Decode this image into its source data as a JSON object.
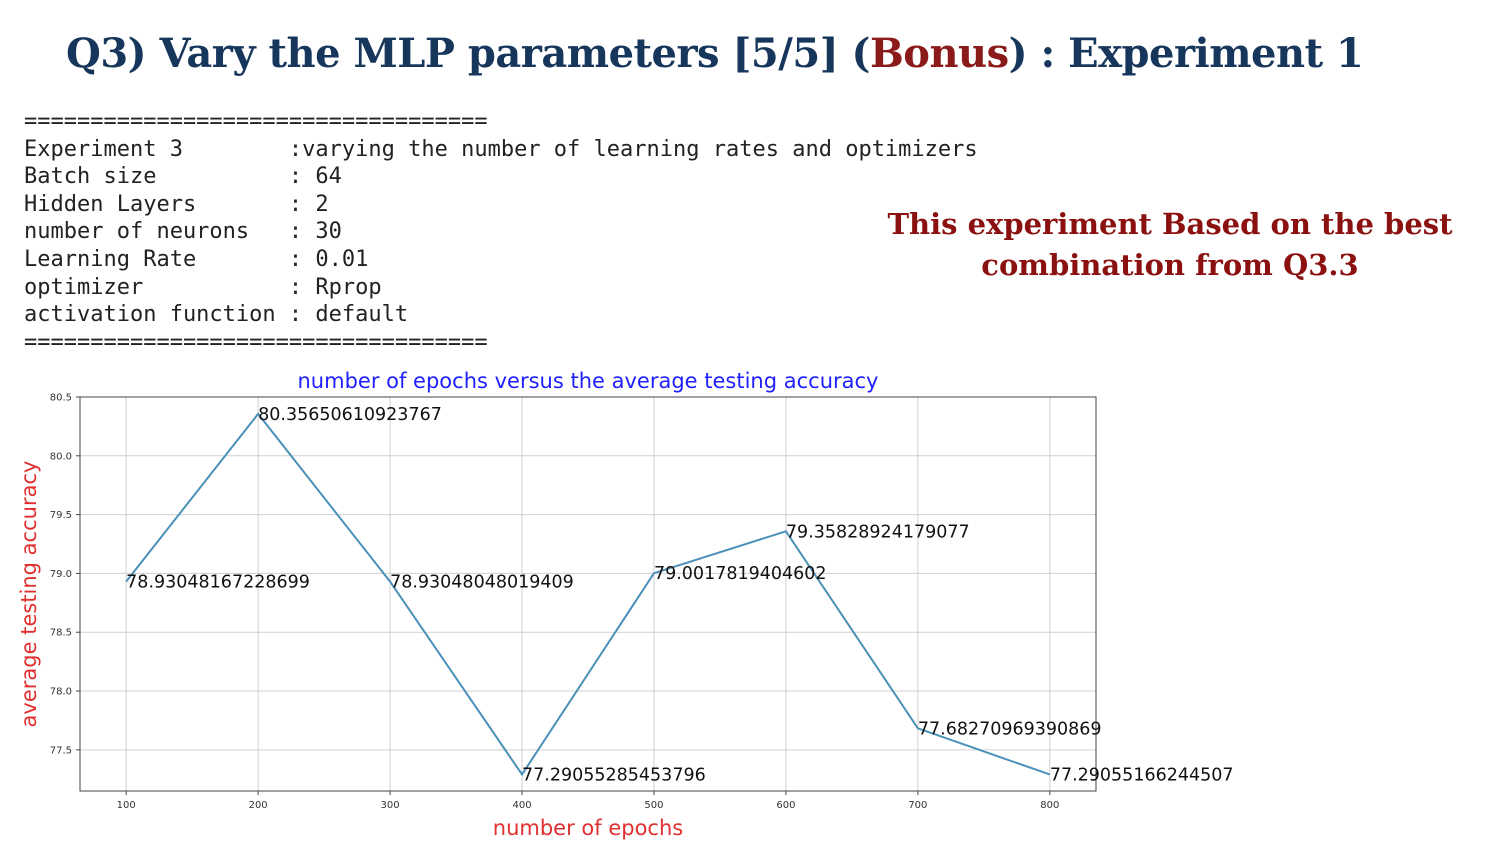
{
  "slide": {
    "title_prefix": "Q3) Vary the MLP parameters [5/5]  (",
    "title_bonus": "Bonus",
    "title_suffix": ") : Experiment 1",
    "note": "This experiment Based on the best combination from Q3.3"
  },
  "console": {
    "rule": "===================================",
    "lines": [
      "Experiment 3        :varying the number of learning rates and optimizers",
      "Batch size          : 64",
      "Hidden Layers       : 2",
      "number of neurons   : 30",
      "Learning Rate       : 0.01",
      "optimizer           : Rprop",
      "activation function : default"
    ]
  },
  "colors": {
    "title": "#16365c",
    "bonus": "#8b1a1a",
    "note": "#8b1010",
    "chart_title": "#1f1fff",
    "axis_labels": "#e03030",
    "series_line": "#4a90b8"
  },
  "chart_data": {
    "type": "line",
    "title": "number of epochs versus the average testing accuracy",
    "xlabel": "number of epochs",
    "ylabel": "average testing accuracy",
    "x": [
      100,
      200,
      300,
      400,
      500,
      600,
      700,
      800
    ],
    "xticks": [
      "100",
      "200",
      "300",
      "400",
      "500",
      "600",
      "700",
      "800"
    ],
    "yticks": [
      "77.5",
      "78.0",
      "78.5",
      "79.0",
      "79.5",
      "80.0",
      "80.5"
    ],
    "xlim": [
      65,
      835
    ],
    "ylim": [
      77.15,
      80.5
    ],
    "grid": true,
    "series": [
      {
        "values": [
          78.93048167228699,
          80.35650610923767,
          78.93048048019409,
          77.29055285453796,
          79.0017819404602,
          79.35828924179077,
          77.68270969390869,
          77.29055166244507
        ],
        "labels": [
          "78.93048167228699",
          "80.35650610923767",
          "78.93048048019409",
          "77.29055285453796",
          "79.0017819404602",
          "79.35828924179077",
          "77.68270969390869",
          "77.29055166244507"
        ]
      }
    ]
  }
}
